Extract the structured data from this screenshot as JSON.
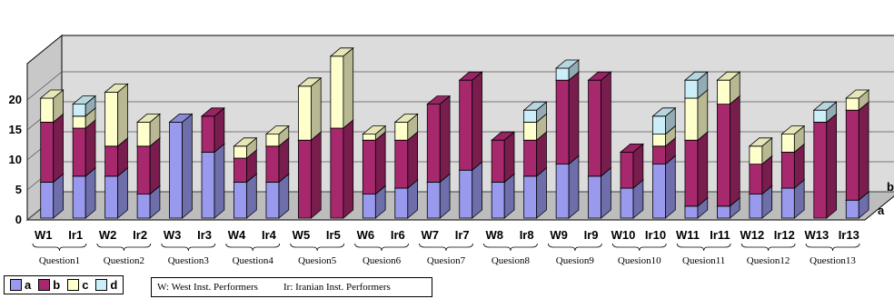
{
  "chart_data": {
    "type": "bar",
    "subtype": "3d-stacked-column",
    "title": "",
    "xlabel": "",
    "ylabel": "",
    "ylim": [
      0,
      20
    ],
    "yticks": [
      "0",
      "5",
      "10",
      "15",
      "20"
    ],
    "categories": [
      "W1",
      "Ir1",
      "W2",
      "Ir2",
      "W3",
      "Ir3",
      "W4",
      "Ir4",
      "W5",
      "Ir5",
      "W6",
      "Ir6",
      "W7",
      "Ir7",
      "W8",
      "Ir8",
      "W9",
      "Ir9",
      "W10",
      "Ir10",
      "W11",
      "Ir11",
      "W12",
      "Ir12",
      "W13",
      "Ir13"
    ],
    "groups": [
      "Question1",
      "Question2",
      "Question3",
      "Question4",
      "Quesion5",
      "Quesion6",
      "Quesion7",
      "Quesion8",
      "Quesion9",
      "Quesion10",
      "Quesion11",
      "Quesion12",
      "Question13"
    ],
    "series": [
      {
        "name": "a",
        "color": "#9999ee",
        "values": [
          6,
          7,
          7,
          4,
          16,
          11,
          6,
          6,
          0,
          0,
          4,
          5,
          6,
          8,
          6,
          7,
          9,
          7,
          5,
          9,
          2,
          2,
          4,
          5,
          0,
          3
        ]
      },
      {
        "name": "b",
        "color": "#a8286e",
        "values": [
          10,
          8,
          5,
          8,
          0,
          6,
          4,
          6,
          13,
          15,
          9,
          8,
          13,
          15,
          7,
          6,
          14,
          16,
          6,
          3,
          11,
          17,
          5,
          6,
          16,
          15
        ]
      },
      {
        "name": "c",
        "color": "#ffffcc",
        "values": [
          4,
          2,
          9,
          4,
          0,
          0,
          2,
          2,
          9,
          12,
          1,
          3,
          0,
          0,
          0,
          3,
          0,
          0,
          0,
          2,
          7,
          4,
          3,
          3,
          0,
          2
        ]
      },
      {
        "name": "d",
        "color": "#cceef8",
        "values": [
          0,
          2,
          0,
          0,
          0,
          0,
          0,
          0,
          0,
          0,
          0,
          0,
          0,
          0,
          0,
          2,
          2,
          0,
          0,
          3,
          3,
          0,
          0,
          0,
          2,
          0
        ]
      }
    ],
    "depth_labels": [
      "a",
      "b"
    ],
    "legend": {
      "position": "bottom-left",
      "entries": [
        "a",
        "b",
        "c",
        "d"
      ]
    },
    "notes": [
      "W: West Inst. Performers",
      "Ir: Iranian Inst. Performers"
    ],
    "grid": true
  }
}
